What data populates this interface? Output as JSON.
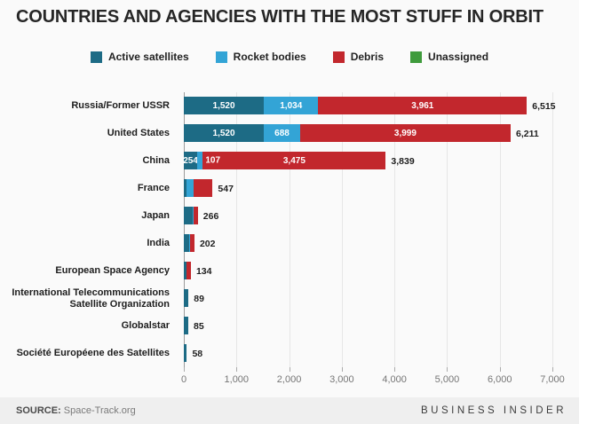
{
  "title": "COUNTRIES AND AGENCIES WITH THE MOST STUFF IN ORBIT",
  "colors": {
    "active": "#1d6b85",
    "rocket": "#33a4d6",
    "debris": "#c2272d",
    "unassigned": "#3f9b3c",
    "grid": "#e6e6e6",
    "axis": "#9b9b9b"
  },
  "legend": [
    {
      "key": "active",
      "label": "Active satellites"
    },
    {
      "key": "rocket",
      "label": "Rocket bodies"
    },
    {
      "key": "debris",
      "label": "Debris"
    },
    {
      "key": "unassigned",
      "label": "Unassigned"
    }
  ],
  "chart_data": {
    "type": "bar",
    "orientation": "horizontal",
    "stacked": true,
    "title": "COUNTRIES AND AGENCIES WITH THE MOST STUFF IN ORBIT",
    "xlabel": "",
    "ylabel": "",
    "xlim": [
      0,
      7000
    ],
    "grid": true,
    "legend_position": "top",
    "x_ticks": [
      {
        "value": 0,
        "label": "0"
      },
      {
        "value": 1000,
        "label": "1,000"
      },
      {
        "value": 2000,
        "label": "2,000"
      },
      {
        "value": 3000,
        "label": "3,000"
      },
      {
        "value": 4000,
        "label": "4,000"
      },
      {
        "value": 5000,
        "label": "5,000"
      },
      {
        "value": 6000,
        "label": "6,000"
      },
      {
        "value": 7000,
        "label": "7,000"
      }
    ],
    "rows": [
      {
        "label": "Russia/Former USSR",
        "total": 6515,
        "total_label": "6,515",
        "segments": [
          {
            "key": "active",
            "value": 1520,
            "label": "1,520",
            "label_mode": "center"
          },
          {
            "key": "rocket",
            "value": 1034,
            "label": "1,034",
            "label_mode": "center"
          },
          {
            "key": "debris",
            "value": 3961,
            "label": "3,961",
            "label_mode": "center"
          }
        ]
      },
      {
        "label": "United States",
        "total": 6211,
        "total_label": "6,211",
        "segments": [
          {
            "key": "active",
            "value": 1520,
            "label": "1,520",
            "label_mode": "center"
          },
          {
            "key": "rocket",
            "value": 688,
            "label": "688",
            "label_mode": "center"
          },
          {
            "key": "debris",
            "value": 3999,
            "label": "3,999",
            "label_mode": "center"
          }
        ]
      },
      {
        "label": "China",
        "total": 3839,
        "total_label": "3,839",
        "segments": [
          {
            "key": "active",
            "value": 254,
            "label": "254",
            "label_mode": "center"
          },
          {
            "key": "rocket",
            "value": 107,
            "label": "107",
            "label_mode": "after"
          },
          {
            "key": "debris",
            "value": 3475,
            "label": "3,475",
            "label_mode": "center"
          }
        ]
      },
      {
        "label": "France",
        "total": 547,
        "total_label": "547",
        "segments": [
          {
            "key": "active",
            "value": 55,
            "label": "",
            "estimated": true
          },
          {
            "key": "rocket",
            "value": 125,
            "label": "",
            "estimated": true
          },
          {
            "key": "debris",
            "value": 367,
            "label": "",
            "estimated": true
          }
        ]
      },
      {
        "label": "Japan",
        "total": 266,
        "total_label": "266",
        "segments": [
          {
            "key": "active",
            "value": 165,
            "label": "",
            "estimated": true
          },
          {
            "key": "rocket",
            "value": 25,
            "label": "",
            "estimated": true
          },
          {
            "key": "debris",
            "value": 76,
            "label": "",
            "estimated": true
          }
        ]
      },
      {
        "label": "India",
        "total": 202,
        "total_label": "202",
        "segments": [
          {
            "key": "active",
            "value": 93,
            "label": "",
            "estimated": true
          },
          {
            "key": "rocket",
            "value": 17,
            "label": "",
            "estimated": true
          },
          {
            "key": "debris",
            "value": 92,
            "label": "",
            "estimated": true
          }
        ]
      },
      {
        "label": "European Space Agency",
        "total": 134,
        "total_label": "134",
        "segments": [
          {
            "key": "active",
            "value": 45,
            "label": "",
            "estimated": true
          },
          {
            "key": "rocket",
            "value": 5,
            "label": "",
            "estimated": true
          },
          {
            "key": "debris",
            "value": 84,
            "label": "",
            "estimated": true
          }
        ]
      },
      {
        "label": "International Telecommunications Satellite Organization",
        "total": 89,
        "total_label": "89",
        "segments": [
          {
            "key": "active",
            "value": 89,
            "label": "",
            "estimated": true
          }
        ]
      },
      {
        "label": "Globalstar",
        "total": 85,
        "total_label": "85",
        "segments": [
          {
            "key": "active",
            "value": 85,
            "label": "",
            "estimated": true
          }
        ]
      },
      {
        "label": "Société Européene des Satellites",
        "total": 58,
        "total_label": "58",
        "segments": [
          {
            "key": "active",
            "value": 58,
            "label": "",
            "estimated": true
          }
        ]
      }
    ]
  },
  "footer": {
    "source_label": "SOURCE:",
    "source_value": "Space-Track.org",
    "brand": "BUSINESS INSIDER"
  }
}
